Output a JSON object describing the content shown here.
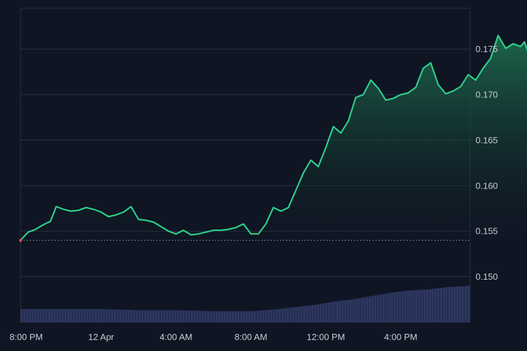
{
  "chart_data": {
    "type": "area",
    "title": "",
    "xlabel": "",
    "ylabel": "",
    "y_ticks": [
      "0.150",
      "0.155",
      "0.160",
      "0.165",
      "0.170",
      "0.175"
    ],
    "x_ticks": [
      "8:00 PM",
      "12 Apr",
      "4:00 AM",
      "8:00 AM",
      "12:00 PM",
      "4:00 PM"
    ],
    "ylim": [
      0.145,
      0.1795
    ],
    "x_hours_since_first_tick": [
      -0.3,
      23.7
    ],
    "grid": true,
    "baseline": 0.154,
    "colors": {
      "background": "#0f1523",
      "line": "#2fd08a",
      "area_top": "#1e6f4f",
      "area_bottom": "#0f1d24",
      "volume": "#2d3760",
      "grid": "#283144",
      "baseline": "#9aa0ab",
      "start_marker": "#e05252"
    },
    "series": [
      {
        "values": [
          [
            -0.3,
            0.154
          ],
          [
            0.1,
            0.1549
          ],
          [
            0.5,
            0.1552
          ],
          [
            0.9,
            0.1557
          ],
          [
            1.3,
            0.1561
          ],
          [
            1.6,
            0.1577
          ],
          [
            2.0,
            0.1574
          ],
          [
            2.4,
            0.1572
          ],
          [
            2.8,
            0.1573
          ],
          [
            3.2,
            0.1576
          ],
          [
            3.6,
            0.1574
          ],
          [
            4.0,
            0.1571
          ],
          [
            4.4,
            0.1566
          ],
          [
            4.8,
            0.1568
          ],
          [
            5.2,
            0.1571
          ],
          [
            5.6,
            0.1577
          ],
          [
            6.0,
            0.1563
          ],
          [
            6.4,
            0.1562
          ],
          [
            6.8,
            0.156
          ],
          [
            7.2,
            0.1555
          ],
          [
            7.6,
            0.155
          ],
          [
            8.0,
            0.1547
          ],
          [
            8.4,
            0.1551
          ],
          [
            8.8,
            0.1546
          ],
          [
            9.2,
            0.1547
          ],
          [
            9.6,
            0.1549
          ],
          [
            10.0,
            0.1551
          ],
          [
            10.4,
            0.1551
          ],
          [
            10.8,
            0.1552
          ],
          [
            11.2,
            0.1554
          ],
          [
            11.6,
            0.1558
          ],
          [
            12.0,
            0.1547
          ],
          [
            12.4,
            0.1547
          ],
          [
            12.8,
            0.1558
          ],
          [
            13.2,
            0.1576
          ],
          [
            13.6,
            0.1572
          ],
          [
            14.0,
            0.1576
          ],
          [
            14.4,
            0.1595
          ],
          [
            14.8,
            0.1614
          ],
          [
            15.2,
            0.1628
          ],
          [
            15.6,
            0.1621
          ],
          [
            16.0,
            0.1642
          ],
          [
            16.4,
            0.1665
          ],
          [
            16.8,
            0.1658
          ],
          [
            17.2,
            0.1671
          ],
          [
            17.6,
            0.1697
          ],
          [
            18.0,
            0.17
          ],
          [
            18.4,
            0.1716
          ],
          [
            18.8,
            0.1707
          ],
          [
            19.2,
            0.1694
          ],
          [
            19.6,
            0.1696
          ],
          [
            20.0,
            0.17
          ],
          [
            20.4,
            0.1702
          ],
          [
            20.8,
            0.1708
          ],
          [
            21.2,
            0.1729
          ],
          [
            21.6,
            0.1735
          ],
          [
            22.0,
            0.1711
          ],
          [
            22.4,
            0.1701
          ],
          [
            22.8,
            0.1704
          ],
          [
            23.2,
            0.1709
          ],
          [
            23.6,
            0.1722
          ],
          [
            24.0,
            0.1716
          ],
          [
            24.4,
            0.1729
          ],
          [
            24.8,
            0.174
          ],
          [
            25.2,
            0.1765
          ],
          [
            25.6,
            0.1751
          ],
          [
            26.0,
            0.1756
          ],
          [
            26.4,
            0.1753
          ],
          [
            26.6,
            0.1758
          ],
          [
            26.8,
            0.1747
          ]
        ]
      }
    ],
    "volume": [
      [
        -0.3,
        0.12
      ],
      [
        2,
        0.12
      ],
      [
        4,
        0.12
      ],
      [
        6,
        0.11
      ],
      [
        8,
        0.11
      ],
      [
        10,
        0.1
      ],
      [
        12,
        0.1
      ],
      [
        13.5,
        0.12
      ],
      [
        14.5,
        0.14
      ],
      [
        15.5,
        0.16
      ],
      [
        16.5,
        0.19
      ],
      [
        17.5,
        0.21
      ],
      [
        18.5,
        0.24
      ],
      [
        19.5,
        0.27
      ],
      [
        20.5,
        0.29
      ],
      [
        21.5,
        0.3
      ],
      [
        22.5,
        0.32
      ],
      [
        23.5,
        0.33
      ],
      [
        24.5,
        0.34
      ],
      [
        25.5,
        0.36
      ],
      [
        26.8,
        0.37
      ]
    ]
  }
}
